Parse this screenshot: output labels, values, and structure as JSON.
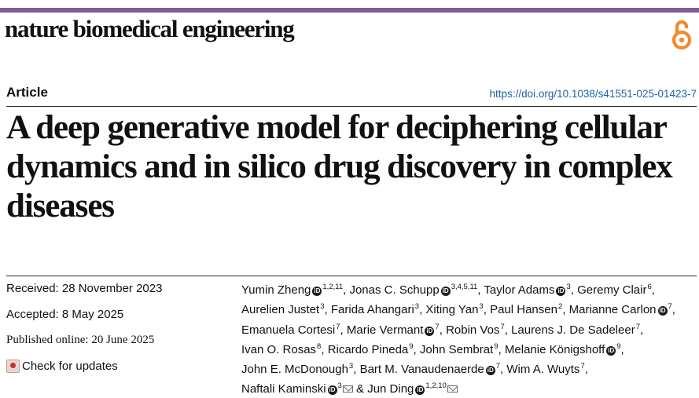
{
  "journal": "nature biomedical engineering",
  "section": "Article",
  "doi": "https://doi.org/10.1038/s41551-025-01423-7",
  "title": "A deep generative model for deciphering cellular dynamics and in silico drug discovery in complex diseases",
  "dates": {
    "received": "Received: 28 November 2023",
    "accepted": "Accepted: 8 May 2025",
    "published": "Published online: 20 June 2025"
  },
  "check_updates": "Check for updates",
  "orcid_glyph": "iD",
  "authors": [
    {
      "name": "Yumin Zheng",
      "orcid": true,
      "aff": "1,2,11",
      "sep": ", "
    },
    {
      "name": "Jonas C. Schupp",
      "orcid": true,
      "aff": "3,4,5,11",
      "sep": ", "
    },
    {
      "name": "Taylor Adams",
      "orcid": true,
      "aff": "3",
      "sep": ", "
    },
    {
      "name": "Geremy Clair",
      "orcid": false,
      "aff": "6",
      "sep": ", "
    },
    {
      "name": "Aurelien Justet",
      "orcid": false,
      "aff": "3",
      "sep": ", "
    },
    {
      "name": "Farida Ahangari",
      "orcid": false,
      "aff": "3",
      "sep": ", "
    },
    {
      "name": "Xiting Yan",
      "orcid": false,
      "aff": "3",
      "sep": ", "
    },
    {
      "name": "Paul Hansen",
      "orcid": false,
      "aff": "2",
      "sep": ", "
    },
    {
      "name": "Marianne Carlon",
      "orcid": true,
      "aff": "7",
      "sep": ", "
    },
    {
      "name": "Emanuela Cortesi",
      "orcid": false,
      "aff": "7",
      "sep": ", "
    },
    {
      "name": "Marie Vermant",
      "orcid": true,
      "aff": "7",
      "sep": ", "
    },
    {
      "name": "Robin Vos",
      "orcid": false,
      "aff": "7",
      "sep": ", "
    },
    {
      "name": "Laurens J. De Sadeleer",
      "orcid": false,
      "aff": "7",
      "sep": ", "
    },
    {
      "name": "Ivan O. Rosas",
      "orcid": false,
      "aff": "8",
      "sep": ", "
    },
    {
      "name": "Ricardo Pineda",
      "orcid": false,
      "aff": "9",
      "sep": ", "
    },
    {
      "name": "John Sembrat",
      "orcid": false,
      "aff": "9",
      "sep": ", "
    },
    {
      "name": "Melanie Königshoff",
      "orcid": true,
      "aff": "9",
      "sep": ", "
    },
    {
      "name": "John E. McDonough",
      "orcid": false,
      "aff": "3",
      "sep": ", "
    },
    {
      "name": "Bart M. Vanaudenaerde",
      "orcid": true,
      "aff": "7",
      "sep": ", "
    },
    {
      "name": "Wim A. Wuyts",
      "orcid": false,
      "aff": "7",
      "sep": ", "
    },
    {
      "name": "Naftali Kaminski",
      "orcid": true,
      "aff": "3",
      "mail": true,
      "sep": " & "
    },
    {
      "name": "Jun Ding",
      "orcid": true,
      "aff": "1,2,10",
      "mail": true,
      "sep": ""
    }
  ],
  "colors": {
    "topbar": "#7d5c9c",
    "link": "#1a62a8",
    "open_access": "#f08a2c"
  }
}
